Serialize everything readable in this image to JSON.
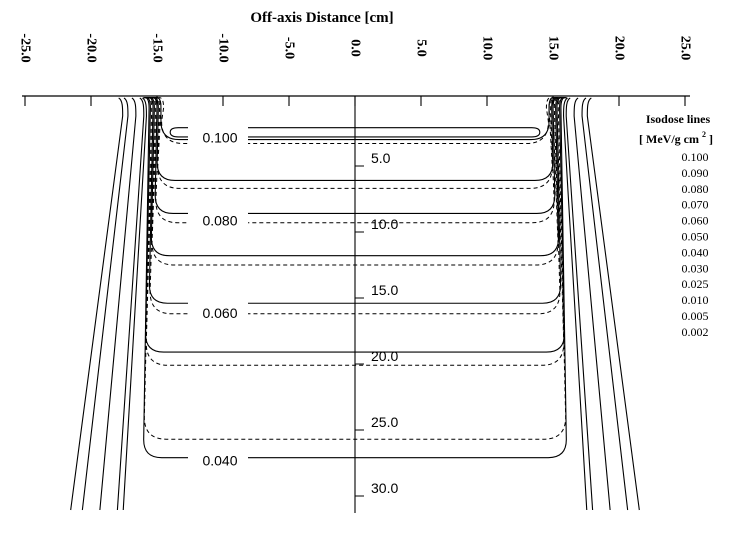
{
  "chart_data": {
    "type": "line",
    "title": "Off-axis Distance [cm]",
    "x_axis": {
      "label": "Off-axis Distance [cm]",
      "position": "top",
      "range": [
        -25,
        25
      ],
      "ticks": [
        -25,
        -20,
        -15,
        -10,
        -5,
        0,
        5,
        10,
        15,
        20,
        25
      ],
      "tick_labels": [
        "-25.0",
        "-20.0",
        "-15.0",
        "-10.0",
        "-5.0",
        "0.0",
        "5.0",
        "10.0",
        "15.0",
        "20.0",
        "25.0"
      ]
    },
    "depth_axis": {
      "range": [
        0,
        33
      ],
      "labeled_depths": [
        5,
        10,
        15,
        20,
        25,
        30
      ],
      "tick_labels": [
        "5.0",
        "10.0",
        "15.0",
        "20.0",
        "25.0",
        "30.0"
      ]
    },
    "curve_labels": [
      {
        "text": "0.100",
        "depth": 2.9
      },
      {
        "text": "0.080",
        "depth": 9.2
      },
      {
        "text": "0.060",
        "depth": 16.2
      },
      {
        "text": "0.040",
        "depth": 27.4
      }
    ],
    "legend": {
      "title": "Isodose lines",
      "unit_prefix": "[ MeV/g cm",
      "unit_exp": "2",
      "unit_suffix": "]",
      "placement": "right",
      "entries": [
        "0.100",
        "0.090",
        "0.080",
        "0.070",
        "0.060",
        "0.050",
        "0.040",
        "0.030",
        "0.025",
        "0.010",
        "0.005",
        "0.002"
      ]
    },
    "series": [
      {
        "value": "0.100",
        "half_width": 14.7,
        "depth_end": 3.3,
        "closed_depth": 3.1,
        "dashed_depth": 3.6
      },
      {
        "value": "0.090",
        "half_width": 14.9,
        "depth_end": 6.4,
        "dashed_depth": 7.0
      },
      {
        "value": "0.080",
        "half_width": 15.0,
        "depth_end": 8.9,
        "dashed_depth": 9.6
      },
      {
        "value": "0.070",
        "half_width": 15.2,
        "depth_end": 12.1,
        "dashed_depth": 12.8
      },
      {
        "value": "0.060",
        "half_width": 15.3,
        "depth_end": 15.7,
        "dashed_depth": 16.5
      },
      {
        "value": "0.050",
        "half_width": 15.5,
        "depth_end": 19.4,
        "dashed_depth": 20.4
      },
      {
        "value": "0.040",
        "half_width": 15.6,
        "depth_end": 27.4,
        "dashed_depth": 26.0
      },
      {
        "value": "0.030",
        "half_width": 15.8,
        "depth_end": 33.0
      },
      {
        "value": "0.025",
        "half_width": 16.0,
        "depth_end": 33.0
      },
      {
        "value": "0.010",
        "half_width": 16.6,
        "depth_end": 33.0
      },
      {
        "value": "0.005",
        "half_width": 17.2,
        "depth_end": 33.0
      },
      {
        "value": "0.002",
        "half_width": 17.6,
        "depth_end": 33.0
      }
    ],
    "grid": false
  }
}
